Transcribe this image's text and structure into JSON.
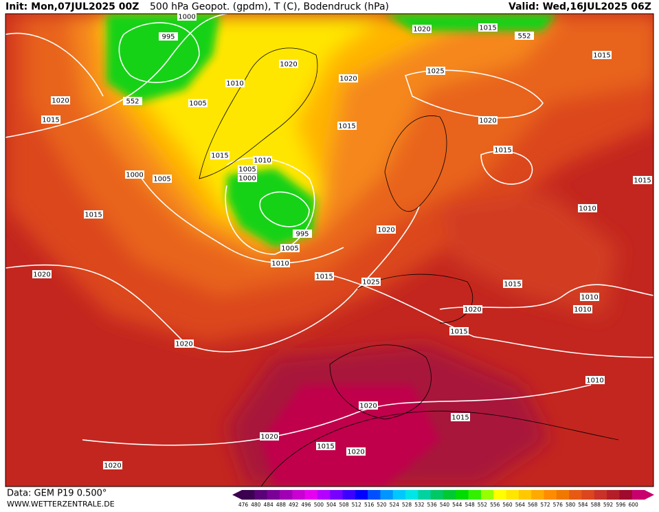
{
  "header": {
    "init": "Init: Mon,07JUL2025 00Z",
    "title": "500 hPa Geopot. (gpdm), T (C), Bodendruck (hPa)",
    "valid": "Valid: Wed,16JUL2025 06Z"
  },
  "footer": {
    "data_source": "Data: GEM P19 0.500°",
    "website": "WWW.WETTERZENTRALE.DE"
  },
  "colorbar": {
    "labels": [
      476,
      480,
      484,
      488,
      492,
      496,
      500,
      504,
      508,
      512,
      516,
      520,
      524,
      528,
      532,
      536,
      540,
      544,
      548,
      552,
      556,
      560,
      564,
      568,
      572,
      576,
      580,
      584,
      588,
      592,
      596,
      600
    ],
    "colors": [
      "#3c0050",
      "#5a0078",
      "#7a0096",
      "#a000b4",
      "#c800d2",
      "#e600f0",
      "#b400ff",
      "#7800ff",
      "#3c00ff",
      "#0000ff",
      "#0050ff",
      "#0096ff",
      "#00c8ff",
      "#00e6e6",
      "#00d2a0",
      "#00c864",
      "#00c832",
      "#00dc00",
      "#32f000",
      "#96ff00",
      "#ffff00",
      "#ffe600",
      "#ffc800",
      "#ffaa00",
      "#ff8c00",
      "#f07800",
      "#e65a14",
      "#dc461e",
      "#c83228",
      "#b41e28",
      "#a00a2d",
      "#c8006e"
    ]
  },
  "isobar_labels": [
    1000,
    995,
    1020,
    1015,
    552,
    1015,
    1020,
    1020,
    1025,
    1010,
    1005,
    552,
    1020,
    1015,
    1015,
    1020,
    1015,
    1015,
    1010,
    1005,
    1000,
    1000,
    1005,
    1015,
    1010,
    1015,
    995,
    1020,
    1005,
    1010,
    1020,
    1015,
    1025,
    1015,
    1010,
    1020,
    1010,
    1015,
    1020,
    1010,
    1020,
    1015,
    1020,
    1015,
    1020,
    1020
  ]
}
